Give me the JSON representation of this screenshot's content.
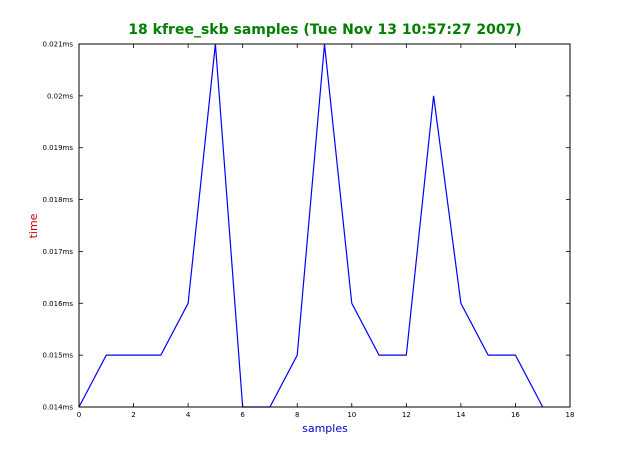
{
  "chart_data": {
    "type": "line",
    "title": "18 kfree_skb samples (Tue Nov 13 10:57:27 2007)",
    "xlabel": "samples",
    "ylabel": "time",
    "xlim": [
      0,
      18
    ],
    "ylim": [
      0.014,
      0.021
    ],
    "x_ticks": [
      0,
      2,
      4,
      6,
      8,
      10,
      12,
      14,
      16,
      18
    ],
    "y_ticks": [
      0.014,
      0.015,
      0.016,
      0.017,
      0.018,
      0.019,
      0.02,
      0.021
    ],
    "x_tick_labels": [
      "0",
      "2",
      "4",
      "6",
      "8",
      "10",
      "12",
      "14",
      "16",
      "18"
    ],
    "y_tick_labels": [
      "0.014ms",
      "0.015ms",
      "0.016ms",
      "0.017ms",
      "0.018ms",
      "0.019ms",
      "0.02ms",
      "0.021ms"
    ],
    "grid": false,
    "series": [
      {
        "x": [
          0,
          1,
          2,
          3,
          4,
          5,
          6,
          7,
          8,
          9,
          10,
          11,
          12,
          13,
          14,
          15,
          16,
          17
        ],
        "y": [
          0.014,
          0.015,
          0.015,
          0.015,
          0.016,
          0.021,
          0.014,
          0.014,
          0.015,
          0.021,
          0.016,
          0.015,
          0.015,
          0.02,
          0.016,
          0.015,
          0.015,
          0.014
        ],
        "color": "#0000ff"
      }
    ],
    "colors": {
      "title": "#007f00",
      "xlabel": "#0000cc",
      "ylabel": "#cc0000",
      "axes": "#000000"
    }
  }
}
